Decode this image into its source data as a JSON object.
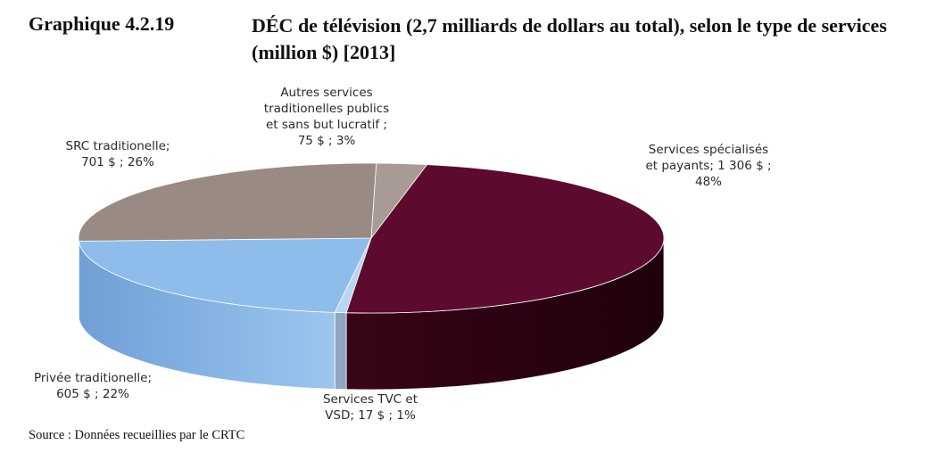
{
  "title": {
    "number": "Graphique 4.2.19",
    "text": "DÉC de télévision (2,7 milliards de dollars au total), selon le type de services (million $) [2013]"
  },
  "source": "Source : Données recueillies par le CRTC",
  "chart_data": {
    "type": "pie",
    "title": "DÉC de télévision (2,7 milliards de dollars au total), selon le type de services (million $) [2013]",
    "three_d": true,
    "total_note": "2,7 milliards de dollars au total",
    "unit": "million $",
    "slices": [
      {
        "label": "Services spécialisés et payants",
        "value": 1306,
        "percent": 48,
        "color": "#5c0a2e",
        "label_lines": [
          "Services spécialisés",
          "et payants;  1 306 $ ;",
          "48%"
        ]
      },
      {
        "label": "Services TVC et VSD",
        "value": 17,
        "percent": 1,
        "color": "#b8d6f2",
        "label_lines": [
          "Services TVC et",
          "VSD;  17 $ ; 1%"
        ]
      },
      {
        "label": "Privée traditionelle",
        "value": 605,
        "percent": 22,
        "color": "#8ebdec",
        "label_lines": [
          "Privée traditionelle;",
          "605 $ ;  22%"
        ]
      },
      {
        "label": "SRC traditionelle",
        "value": 701,
        "percent": 26,
        "color": "#9a8a84",
        "label_lines": [
          "SRC traditionelle;",
          "701 $ ;  26%"
        ]
      },
      {
        "label": "Autres services traditionelles publics et sans but lucratif",
        "value": 75,
        "percent": 3,
        "color": "#a89a94",
        "label_lines": [
          "Autres services",
          "traditionelles publics",
          "et sans but lucratif ;",
          "75 $ ; 3%"
        ]
      }
    ]
  }
}
